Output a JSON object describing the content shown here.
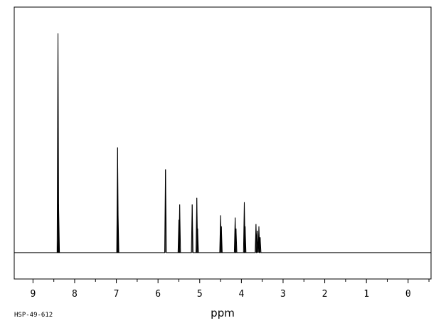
{
  "chart_data": {
    "type": "line",
    "xlabel": "ppm",
    "ylabel": "",
    "xlim": [
      9.45,
      -0.55
    ],
    "x_reversed": true,
    "ylim": [
      -0.12,
      1.12
    ],
    "x_ticks": [
      9,
      8,
      7,
      6,
      5,
      4,
      3,
      2,
      1,
      0
    ],
    "grid": false,
    "baseline": 0,
    "peaks": [
      {
        "ppm": 8.4,
        "intensity": 1.0
      },
      {
        "ppm": 8.385,
        "intensity": 0.22
      },
      {
        "ppm": 6.97,
        "intensity": 0.48
      },
      {
        "ppm": 6.96,
        "intensity": 0.2
      },
      {
        "ppm": 5.82,
        "intensity": 0.38
      },
      {
        "ppm": 5.48,
        "intensity": 0.22
      },
      {
        "ppm": 5.5,
        "intensity": 0.15
      },
      {
        "ppm": 5.18,
        "intensity": 0.22
      },
      {
        "ppm": 5.07,
        "intensity": 0.25
      },
      {
        "ppm": 5.05,
        "intensity": 0.11
      },
      {
        "ppm": 4.5,
        "intensity": 0.17
      },
      {
        "ppm": 4.48,
        "intensity": 0.12
      },
      {
        "ppm": 4.15,
        "intensity": 0.16
      },
      {
        "ppm": 4.13,
        "intensity": 0.11
      },
      {
        "ppm": 3.93,
        "intensity": 0.23
      },
      {
        "ppm": 3.91,
        "intensity": 0.12
      },
      {
        "ppm": 3.65,
        "intensity": 0.13
      },
      {
        "ppm": 3.62,
        "intensity": 0.1
      },
      {
        "ppm": 3.58,
        "intensity": 0.12
      },
      {
        "ppm": 3.55,
        "intensity": 0.07
      }
    ]
  },
  "footer": {
    "code": "HSP-49-612"
  },
  "colors": {
    "line": "#000000",
    "background": "#ffffff"
  }
}
